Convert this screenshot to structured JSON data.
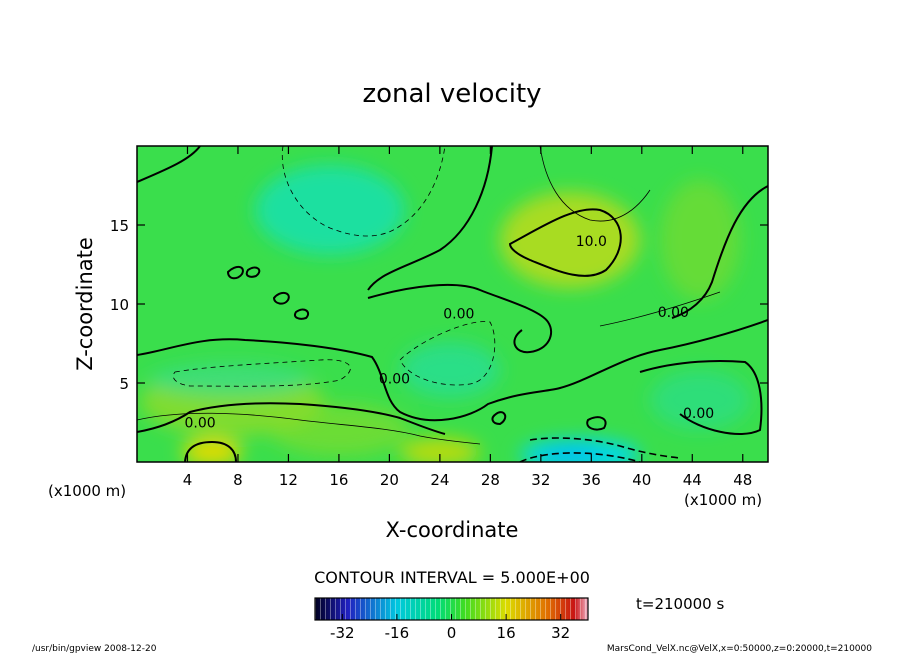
{
  "chart_data": {
    "type": "heatmap",
    "title": "zonal velocity",
    "xlabel": "X-coordinate",
    "ylabel": "Z-coordinate",
    "x_unit_left": "(x1000 m)",
    "x_unit_right": "(x1000 m)",
    "xlim": [
      0,
      50
    ],
    "ylim": [
      0,
      20
    ],
    "x_ticks": [
      4,
      8,
      12,
      16,
      20,
      24,
      28,
      32,
      36,
      40,
      44,
      48
    ],
    "y_ticks": [
      5,
      10,
      15
    ],
    "contour_interval_text": "CONTOUR INTERVAL = 5.000E+00",
    "time_text": "t=210000 s",
    "colorbar": {
      "range": [
        -40,
        40
      ],
      "ticks": [
        -32,
        -16,
        0,
        16,
        32
      ]
    },
    "contour_labels": [
      {
        "text": "10.0",
        "x": 36,
        "y": 14
      },
      {
        "text": "0.00",
        "x": 25.5,
        "y": 9.4
      },
      {
        "text": "0.00",
        "x": 42.5,
        "y": 9.5
      },
      {
        "text": "0.00",
        "x": 20.4,
        "y": 5.3
      },
      {
        "text": "0.00",
        "x": 5,
        "y": 2.5
      },
      {
        "text": "0.00",
        "x": 44.5,
        "y": 3.1
      }
    ],
    "features": [
      {
        "x": 35,
        "y": 14,
        "value": 10,
        "sign": "positive"
      },
      {
        "x": 6,
        "y": 0.5,
        "value": 25,
        "sign": "positive"
      },
      {
        "x": 25,
        "y": 0.5,
        "value": 15,
        "sign": "positive"
      },
      {
        "x": 36,
        "y": 0.8,
        "value": -15,
        "sign": "negative"
      },
      {
        "x": 14,
        "y": 18,
        "value": -5,
        "sign": "negative"
      },
      {
        "x": 10,
        "y": 5.5,
        "value": -5,
        "sign": "negative"
      },
      {
        "x": 25,
        "y": 6,
        "value": -5,
        "sign": "negative"
      }
    ]
  },
  "footer": {
    "left": "/usr/bin/gpview  2008-12-20",
    "right": "MarsCond_VelX.nc@VelX,x=0:50000,z=0:20000,t=210000"
  }
}
